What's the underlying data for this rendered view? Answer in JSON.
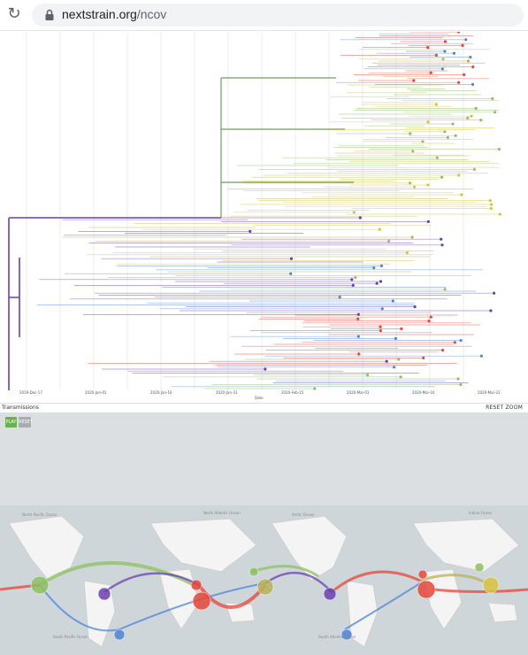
{
  "browser": {
    "url_host": "nextstrain.org",
    "url_path": "/ncov"
  },
  "tree": {
    "x_ticks": [
      "2019-Dec-17",
      "2020-Jan-01",
      "2020-Jan-16",
      "2020-Jan-31",
      "2020-Feb-15",
      "2020-Mar-01",
      "2020-Mar-16",
      "2020-Mar-31"
    ],
    "x_title": "Date"
  },
  "transmissions": {
    "title": "Transmissions",
    "reset_zoom": "RESET ZOOM",
    "play_label": "PLAY",
    "reset_label": "RESET"
  },
  "map": {
    "labels": [
      "North Pacific Ocean",
      "North Atlantic Ocean",
      "Arctic Ocean",
      "Indian Ocean",
      "South Pacific Ocean",
      "South Atlantic Ocean"
    ]
  },
  "colors": {
    "purple": "#6a3fb0",
    "red": "#e6463a",
    "green": "#8cc063",
    "olive": "#b9b25a",
    "yellow": "#d7c33e",
    "blue": "#4f84d6"
  }
}
